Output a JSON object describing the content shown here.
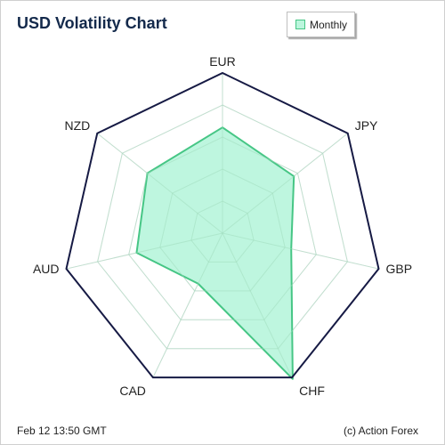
{
  "chart_data": {
    "type": "radar",
    "title": "USD Volatility Chart",
    "axes": [
      "EUR",
      "JPY",
      "GBP",
      "CHF",
      "CAD",
      "AUD",
      "NZD"
    ],
    "series": [
      {
        "name": "Monthly",
        "values": [
          0.66,
          0.57,
          0.44,
          1.01,
          0.35,
          0.55,
          0.6
        ]
      }
    ],
    "rlim": [
      0,
      1.0
    ],
    "grid_rings": 5,
    "legend_position": "top-right",
    "colors": {
      "series_fill": "#bbf6dd",
      "series_stroke": "#46c685",
      "outer_frame": "#161a44",
      "grid": "#e3e3e3",
      "title": "#13294b"
    }
  },
  "footer": {
    "timestamp": "Feb 12  13:50 GMT",
    "credit": "(c) Action Forex"
  }
}
